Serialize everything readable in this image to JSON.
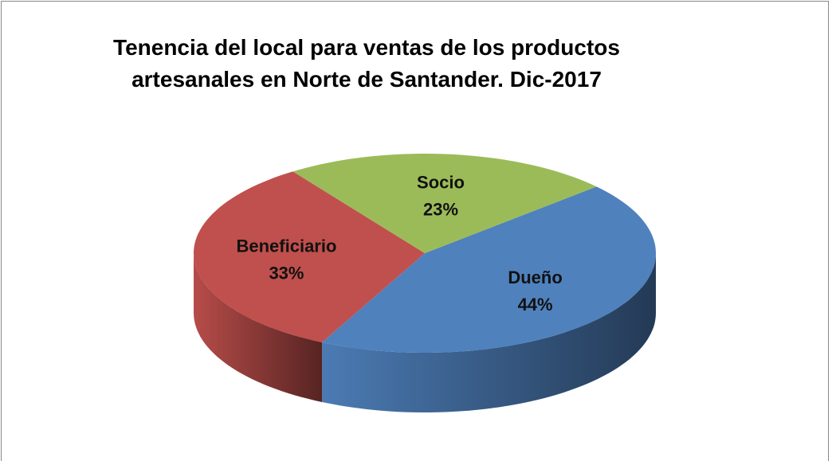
{
  "chart_data": {
    "type": "pie",
    "title": "Tenencia del local para ventas de los productos artesanales en Norte de Santander. Dic-2017",
    "categories": [
      "Dueño",
      "Beneficiario",
      "Socio"
    ],
    "values": [
      44,
      33,
      23
    ],
    "value_labels": [
      "44%",
      "33%",
      "23%"
    ],
    "colors": [
      "#4f81bd",
      "#c0504d",
      "#9bbb59"
    ]
  }
}
